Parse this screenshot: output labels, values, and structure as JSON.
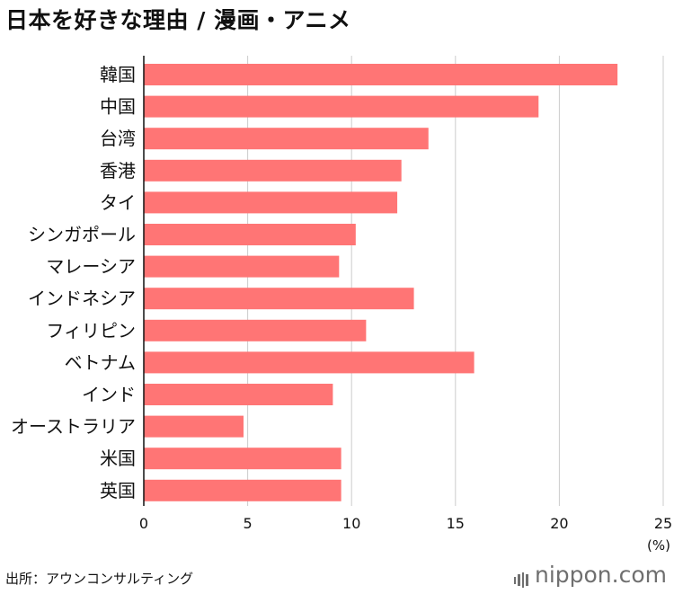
{
  "title": "日本を好きな理由 / 漫画・アニメ",
  "source": "出所：アウンコンサルティング",
  "brand": {
    "name": "nippon",
    "suffix": ".com",
    "icon": "nippon-logo-icon"
  },
  "colors": {
    "bar": "#ff7575",
    "grid": "#cccccc",
    "axis": "#111111",
    "text": "#111111"
  },
  "chart_data": {
    "type": "bar",
    "orientation": "horizontal",
    "categories": [
      "韓国",
      "中国",
      "台湾",
      "香港",
      "タイ",
      "シンガポール",
      "マレーシア",
      "インドネシア",
      "フィリピン",
      "ベトナム",
      "インド",
      "オーストラリア",
      "米国",
      "英国"
    ],
    "values": [
      22.8,
      19.0,
      13.7,
      12.4,
      12.2,
      10.2,
      9.4,
      13.0,
      10.7,
      15.9,
      9.1,
      4.8,
      9.5,
      9.5
    ],
    "xlim": [
      0,
      25
    ],
    "xticks": [
      0,
      5,
      10,
      15,
      20,
      25
    ],
    "xlabel": "(%)",
    "grid": true
  }
}
